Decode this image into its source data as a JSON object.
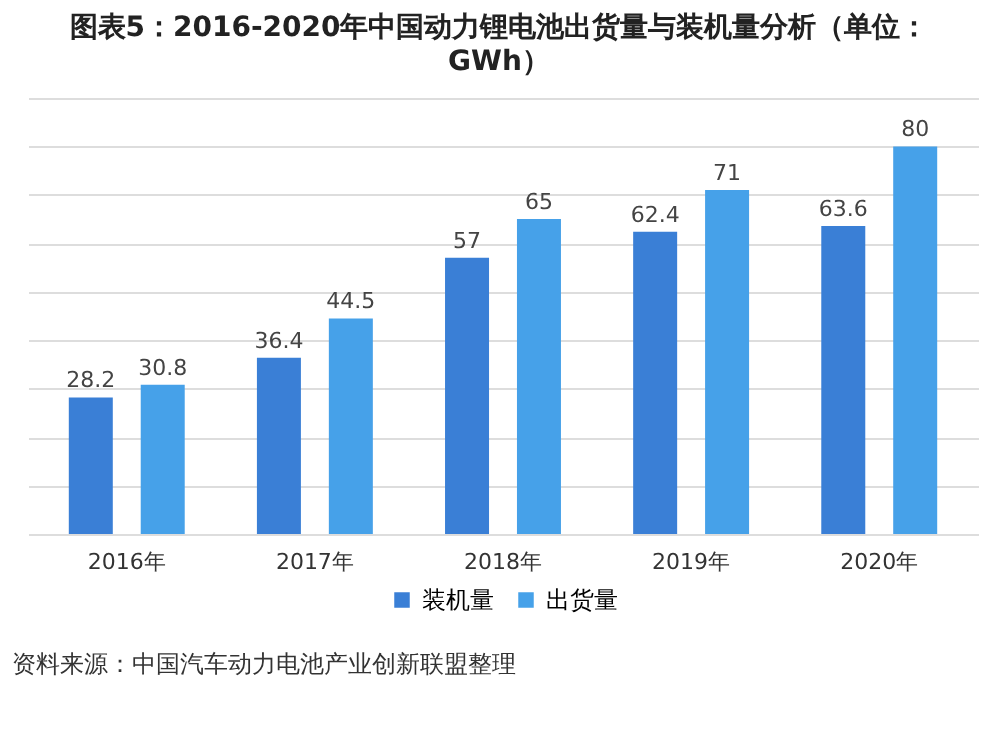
{
  "chart_data": {
    "type": "bar",
    "title": "图表5：2016-2020年中国动力锂电池出货量与装机量分析（单位：GWh）",
    "categories": [
      "2016年",
      "2017年",
      "2018年",
      "2019年",
      "2020年"
    ],
    "series": [
      {
        "name": "装机量",
        "color": "#3a7fd6",
        "values": [
          28.2,
          36.4,
          57,
          62.4,
          63.6
        ]
      },
      {
        "name": "出货量",
        "color": "#46a1e9",
        "values": [
          30.8,
          44.5,
          65,
          71,
          80
        ]
      }
    ],
    "ylim": [
      0,
      90
    ],
    "yticks": [
      {
        "value": 0,
        "label": null
      },
      {
        "value": 10,
        "label": null
      },
      {
        "value": 20,
        "label": null
      },
      {
        "value": 30,
        "label": null
      },
      {
        "value": 40,
        "label": null
      },
      {
        "value": 50,
        "label": null
      },
      {
        "value": 60,
        "label": null
      },
      {
        "value": 70,
        "label": null
      },
      {
        "value": 80,
        "label": null
      },
      {
        "value": 90,
        "label": null
      }
    ],
    "grid": "y",
    "legend": "bottom",
    "data_labels": true,
    "annotations": [
      "资料来源：中国汽车动力电池产业创新联盟整理"
    ]
  }
}
